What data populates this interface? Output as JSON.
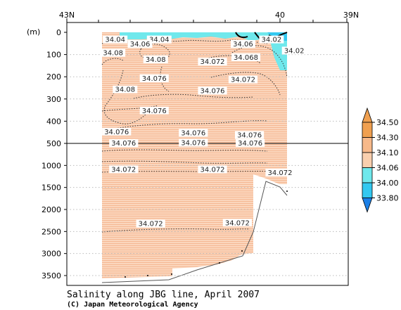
{
  "chart_data": {
    "type": "heatmap",
    "title": "Salinity along JBG line, April 2007",
    "credit": "(C) Japan Meteorological Agency",
    "x_ticks": [
      {
        "value": 43,
        "label": "43N"
      },
      {
        "value": 40,
        "label": "40"
      },
      {
        "value": 39,
        "label": "39N"
      }
    ],
    "y_unit": "(m)",
    "y_ticks_upper": [
      0,
      100,
      200,
      300,
      400,
      500
    ],
    "y_ticks_lower": [
      1000,
      1500,
      2000,
      2500,
      3000,
      3500
    ],
    "y_break_depth": 500,
    "colorbar": {
      "levels": [
        "34.50",
        "34.30",
        "34.10",
        "34.06",
        "34.00",
        "33.80"
      ],
      "colors": [
        "#f0a050",
        "#f7b98a",
        "#f9cfae",
        "#6fe8ec",
        "#33c8f0",
        "#1a7fe6"
      ]
    },
    "contour_labels": [
      {
        "text": "34.04",
        "lat": 42.32,
        "depth": 40
      },
      {
        "text": "34.04",
        "lat": 41.7,
        "depth": 40
      },
      {
        "text": "34.06",
        "lat": 41.97,
        "depth": 60
      },
      {
        "text": "34.08",
        "lat": 42.35,
        "depth": 100
      },
      {
        "text": "34.08",
        "lat": 41.75,
        "depth": 130
      },
      {
        "text": "34.06",
        "lat": 40.52,
        "depth": 60
      },
      {
        "text": "34.02",
        "lat": 40.12,
        "depth": 40
      },
      {
        "text": "34.02",
        "lat": 39.8,
        "depth": 90
      },
      {
        "text": "34.068",
        "lat": 40.48,
        "depth": 120
      },
      {
        "text": "34.072",
        "lat": 40.95,
        "depth": 140
      },
      {
        "text": "34.076",
        "lat": 41.77,
        "depth": 215
      },
      {
        "text": "34.072",
        "lat": 40.52,
        "depth": 220
      },
      {
        "text": "34.08",
        "lat": 42.18,
        "depth": 265
      },
      {
        "text": "34.076",
        "lat": 40.95,
        "depth": 270
      },
      {
        "text": "34.076",
        "lat": 41.77,
        "depth": 360
      },
      {
        "text": "34.076",
        "lat": 42.3,
        "depth": 455
      },
      {
        "text": "34.076",
        "lat": 41.22,
        "depth": 460
      },
      {
        "text": "34.076",
        "lat": 40.43,
        "depth": 470
      },
      {
        "text": "34.076",
        "lat": 42.2,
        "depth": 535
      },
      {
        "text": "34.076",
        "lat": 41.22,
        "depth": 525
      },
      {
        "text": "34.076",
        "lat": 40.42,
        "depth": 530
      },
      {
        "text": "34.072",
        "lat": 42.2,
        "depth": 1130
      },
      {
        "text": "34.072",
        "lat": 40.95,
        "depth": 1130
      },
      {
        "text": "34.072",
        "lat": 40.0,
        "depth": 1200
      },
      {
        "text": "34.072",
        "lat": 41.82,
        "depth": 2360
      },
      {
        "text": "34.072",
        "lat": 40.6,
        "depth": 2340
      }
    ]
  }
}
